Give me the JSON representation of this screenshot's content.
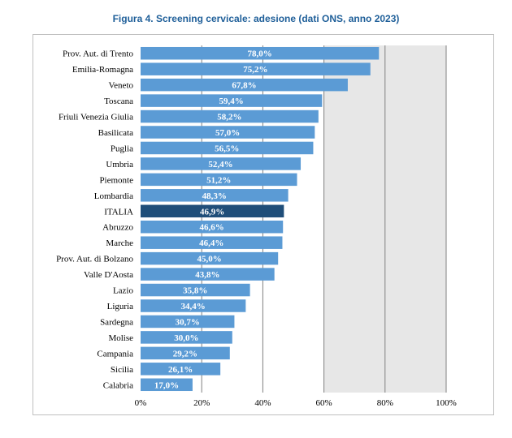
{
  "title": "Figura 4. Screening cervicale: adesione (dati ONS, anno 2023)",
  "colors": {
    "bar": "#5b9bd5",
    "highlight": "#1f4e79",
    "plot_bg": "#e7e7e7",
    "grid": "#7f7f7f",
    "title": "#1f5f99"
  },
  "chart_data": {
    "type": "bar",
    "orientation": "horizontal",
    "categories": [
      "Prov. Aut. di Trento",
      "Emilia-Romagna",
      "Veneto",
      "Toscana",
      "Friuli Venezia Giulia",
      "Basilicata",
      "Puglia",
      "Umbria",
      "Piemonte",
      "Lombardia",
      "ITALIA",
      "Abruzzo",
      "Marche",
      "Prov. Aut. di Bolzano",
      "Valle D'Aosta",
      "Lazio",
      "Liguria",
      "Sardegna",
      "Molise",
      "Campania",
      "Sicilia",
      "Calabria"
    ],
    "values": [
      78.0,
      75.2,
      67.8,
      59.4,
      58.2,
      57.0,
      56.5,
      52.4,
      51.2,
      48.3,
      46.9,
      46.6,
      46.4,
      45.0,
      43.8,
      35.8,
      34.4,
      30.7,
      30.0,
      29.2,
      26.1,
      17.0
    ],
    "value_labels": [
      "78,0%",
      "75,2%",
      "67,8%",
      "59,4%",
      "58,2%",
      "57,0%",
      "56,5%",
      "52,4%",
      "51,2%",
      "48,3%",
      "46,9%",
      "46,6%",
      "46,4%",
      "45,0%",
      "43,8%",
      "35,8%",
      "34,4%",
      "30,7%",
      "30,0%",
      "29,2%",
      "26,1%",
      "17,0%"
    ],
    "highlight_category": "ITALIA",
    "xlim": [
      0,
      100
    ],
    "ticks": [
      0,
      20,
      40,
      60,
      80,
      100
    ],
    "tick_labels": [
      "0%",
      "20%",
      "40%",
      "60%",
      "80%",
      "100%"
    ],
    "grid": true,
    "title": "Figura 4. Screening cervicale: adesione (dati ONS, anno 2023)",
    "xlabel": "",
    "ylabel": ""
  }
}
